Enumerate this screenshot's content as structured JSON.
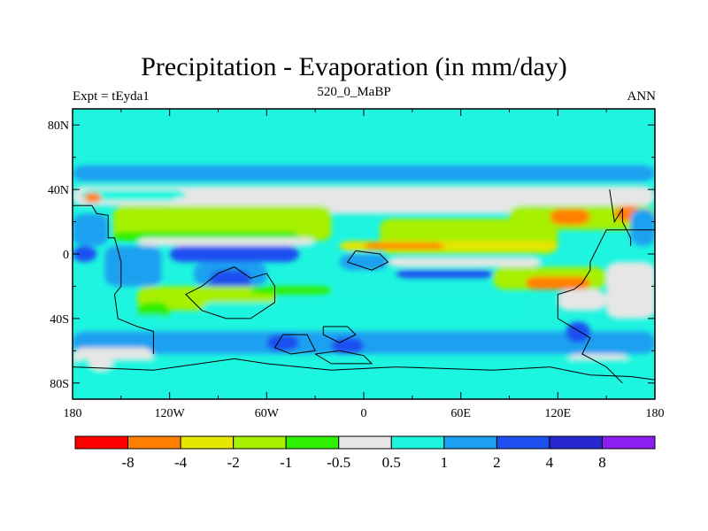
{
  "chart_data": {
    "type": "heatmap",
    "title": "Precipitation - Evaporation (in mm/day)",
    "left_string": "Expt = tEyda1",
    "center_string": "520_0_MaBP",
    "right_string": "ANN",
    "xlim": [
      -180,
      180
    ],
    "ylim": [
      -90,
      90
    ],
    "x_ticks": [
      {
        "value": -180,
        "label": "180"
      },
      {
        "value": -120,
        "label": "120W"
      },
      {
        "value": -60,
        "label": "60W"
      },
      {
        "value": 0,
        "label": "0"
      },
      {
        "value": 60,
        "label": "60E"
      },
      {
        "value": 120,
        "label": "120E"
      },
      {
        "value": 180,
        "label": "180"
      }
    ],
    "y_ticks": [
      {
        "value": 80,
        "label": "80N"
      },
      {
        "value": 40,
        "label": "40N"
      },
      {
        "value": 0,
        "label": "0"
      },
      {
        "value": -40,
        "label": "40S"
      },
      {
        "value": -80,
        "label": "80S"
      }
    ],
    "colorbar": {
      "colors": [
        "#ff0000",
        "#ff8000",
        "#e6e600",
        "#a6f000",
        "#2ef000",
        "#e6e6e6",
        "#1ef5e0",
        "#1ea0f0",
        "#1e50f0",
        "#2828d2",
        "#8c1ef0"
      ],
      "labels": [
        "-8",
        "-4",
        "-2",
        "-1",
        "-0.5",
        "0.5",
        "1",
        "2",
        "4",
        "8"
      ]
    },
    "field_background_color": "#1ef5e0",
    "regions": [
      {
        "level": 7,
        "lat_min": 45,
        "lat_max": 55,
        "lon_min": -180,
        "lon_max": 180
      },
      {
        "level": 5,
        "lat_min": 30,
        "lat_max": 42,
        "lon_min": -180,
        "lon_max": 180
      },
      {
        "level": 6,
        "lat_min": 33,
        "lat_max": 40,
        "lon_min": -175,
        "lon_max": -110
      },
      {
        "level": 1,
        "lat_min": 32,
        "lat_max": 38,
        "lon_min": -173,
        "lon_max": -162
      },
      {
        "level": 5,
        "lat_min": 25,
        "lat_max": 35,
        "lon_min": -120,
        "lon_max": 100
      },
      {
        "level": 3,
        "lat_min": 8,
        "lat_max": 30,
        "lon_min": -155,
        "lon_max": -20
      },
      {
        "level": 4,
        "lat_min": 8,
        "lat_max": 14,
        "lon_min": -155,
        "lon_max": -40
      },
      {
        "level": 5,
        "lat_min": 5,
        "lat_max": 10,
        "lon_min": -140,
        "lon_max": -30
      },
      {
        "level": 7,
        "lat_min": 5,
        "lat_max": 25,
        "lon_min": -180,
        "lon_max": -158
      },
      {
        "level": 8,
        "lat_min": -5,
        "lat_max": 5,
        "lon_min": -180,
        "lon_max": -165
      },
      {
        "level": 7,
        "lat_min": -20,
        "lat_max": 5,
        "lon_min": -160,
        "lon_max": -125
      },
      {
        "level": 8,
        "lat_min": -5,
        "lat_max": 5,
        "lon_min": -120,
        "lon_max": -40
      },
      {
        "level": 7,
        "lat_min": -20,
        "lat_max": -5,
        "lon_min": -105,
        "lon_max": -60
      },
      {
        "level": 8,
        "lat_min": -25,
        "lat_max": -10,
        "lon_min": -95,
        "lon_max": -70
      },
      {
        "level": 3,
        "lat_min": -35,
        "lat_max": -20,
        "lon_min": -140,
        "lon_max": -55
      },
      {
        "level": 4,
        "lat_min": -42,
        "lat_max": -30,
        "lon_min": -140,
        "lon_max": -120
      },
      {
        "level": 4,
        "lat_min": -25,
        "lat_max": -20,
        "lon_min": -70,
        "lon_max": -20
      },
      {
        "level": 7,
        "lat_min": -10,
        "lat_max": 0,
        "lon_min": -15,
        "lon_max": 15
      },
      {
        "level": 3,
        "lat_min": 0,
        "lat_max": 22,
        "lon_min": 10,
        "lon_max": 120
      },
      {
        "level": 2,
        "lat_min": 2,
        "lat_max": 8,
        "lon_min": -15,
        "lon_max": 120
      },
      {
        "level": 1,
        "lat_min": 3,
        "lat_max": 7,
        "lon_min": 0,
        "lon_max": 50
      },
      {
        "level": 3,
        "lat_min": 15,
        "lat_max": 30,
        "lon_min": 90,
        "lon_max": 180
      },
      {
        "level": 1,
        "lat_min": 18,
        "lat_max": 28,
        "lon_min": 115,
        "lon_max": 140
      },
      {
        "level": 1,
        "lat_min": 20,
        "lat_max": 30,
        "lon_min": 155,
        "lon_max": 172
      },
      {
        "level": 7,
        "lat_min": 5,
        "lat_max": 28,
        "lon_min": 165,
        "lon_max": 180
      },
      {
        "level": 5,
        "lat_min": -8,
        "lat_max": -2,
        "lon_min": 15,
        "lon_max": 110
      },
      {
        "level": 8,
        "lat_min": -15,
        "lat_max": -10,
        "lon_min": 20,
        "lon_max": 80
      },
      {
        "level": 3,
        "lat_min": -22,
        "lat_max": -8,
        "lon_min": 80,
        "lon_max": 150
      },
      {
        "level": 1,
        "lat_min": -22,
        "lat_max": -14,
        "lon_min": 100,
        "lon_max": 140
      },
      {
        "level": 5,
        "lat_min": -35,
        "lat_max": -22,
        "lon_min": 120,
        "lon_max": 150
      },
      {
        "level": 5,
        "lat_min": -40,
        "lat_max": -5,
        "lon_min": 150,
        "lon_max": 180
      },
      {
        "level": 6,
        "lat_min": -40,
        "lat_max": -30,
        "lon_min": -100,
        "lon_max": 100
      },
      {
        "level": 6,
        "lat_min": -45,
        "lat_max": -38,
        "lon_min": -180,
        "lon_max": -120
      },
      {
        "level": 7,
        "lat_min": -62,
        "lat_max": -48,
        "lon_min": -180,
        "lon_max": 180
      },
      {
        "level": 8,
        "lat_min": -60,
        "lat_max": -50,
        "lon_min": -60,
        "lon_max": -40
      },
      {
        "level": 8,
        "lat_min": -62,
        "lat_max": -52,
        "lon_min": -20,
        "lon_max": 0
      },
      {
        "level": 8,
        "lat_min": -55,
        "lat_max": -42,
        "lon_min": 125,
        "lon_max": 140
      },
      {
        "level": 5,
        "lat_min": -70,
        "lat_max": -58,
        "lon_min": -180,
        "lon_max": -130
      },
      {
        "level": 5,
        "lat_min": -75,
        "lat_max": -62,
        "lon_min": 125,
        "lon_max": 165
      },
      {
        "level": 6,
        "lat_min": -80,
        "lat_max": -65,
        "lon_min": -180,
        "lon_max": 180
      },
      {
        "level": 5,
        "lat_min": -72,
        "lat_max": -62,
        "lon_min": -170,
        "lon_max": -155
      },
      {
        "level": 6,
        "lat_min": -90,
        "lat_max": -80,
        "lon_min": -180,
        "lon_max": 180
      }
    ],
    "coastlines": [
      [
        [
          -180,
          30
        ],
        [
          -168,
          30
        ],
        [
          -165,
          25
        ],
        [
          -158,
          24
        ],
        [
          -158,
          10
        ],
        [
          -154,
          10
        ],
        [
          -150,
          -5
        ],
        [
          -150,
          -20
        ],
        [
          -154,
          -25
        ],
        [
          -152,
          -40
        ],
        [
          -140,
          -45
        ],
        [
          -130,
          -48
        ],
        [
          -130,
          -62
        ]
      ],
      [
        [
          -100,
          -20
        ],
        [
          -90,
          -12
        ],
        [
          -80,
          -8
        ],
        [
          -70,
          -15
        ],
        [
          -60,
          -12
        ],
        [
          -55,
          -20
        ],
        [
          -55,
          -30
        ],
        [
          -70,
          -40
        ],
        [
          -85,
          -40
        ],
        [
          -100,
          -35
        ],
        [
          -110,
          -25
        ],
        [
          -100,
          -20
        ]
      ],
      [
        [
          -5,
          2
        ],
        [
          10,
          0
        ],
        [
          15,
          -5
        ],
        [
          5,
          -10
        ],
        [
          -10,
          -5
        ],
        [
          -5,
          2
        ]
      ],
      [
        [
          -50,
          -50
        ],
        [
          -35,
          -50
        ],
        [
          -30,
          -60
        ],
        [
          -45,
          -62
        ],
        [
          -55,
          -58
        ],
        [
          -50,
          -50
        ]
      ],
      [
        [
          -25,
          -45
        ],
        [
          -10,
          -45
        ],
        [
          -5,
          -50
        ],
        [
          -15,
          -55
        ],
        [
          -25,
          -50
        ],
        [
          -25,
          -45
        ]
      ],
      [
        [
          -30,
          -62
        ],
        [
          -15,
          -60
        ],
        [
          0,
          -63
        ],
        [
          5,
          -68
        ],
        [
          -20,
          -68
        ],
        [
          -30,
          -62
        ]
      ],
      [
        [
          152,
          40
        ],
        [
          155,
          20
        ],
        [
          160,
          28
        ],
        [
          160,
          20
        ],
        [
          165,
          10
        ],
        [
          165,
          5
        ]
      ],
      [
        [
          180,
          15
        ],
        [
          170,
          15
        ],
        [
          150,
          15
        ],
        [
          140,
          -5
        ],
        [
          140,
          -10
        ],
        [
          135,
          -18
        ],
        [
          130,
          -22
        ],
        [
          120,
          -25
        ],
        [
          120,
          -40
        ],
        [
          140,
          -52
        ],
        [
          135,
          -62
        ],
        [
          150,
          -70
        ],
        [
          160,
          -80
        ]
      ],
      [
        [
          -180,
          -70
        ],
        [
          -130,
          -72
        ],
        [
          -80,
          -65
        ],
        [
          -60,
          -68
        ],
        [
          -20,
          -72
        ],
        [
          20,
          -70
        ],
        [
          80,
          -72
        ],
        [
          115,
          -70
        ],
        [
          140,
          -75
        ],
        [
          165,
          -76
        ],
        [
          180,
          -78
        ]
      ]
    ]
  }
}
